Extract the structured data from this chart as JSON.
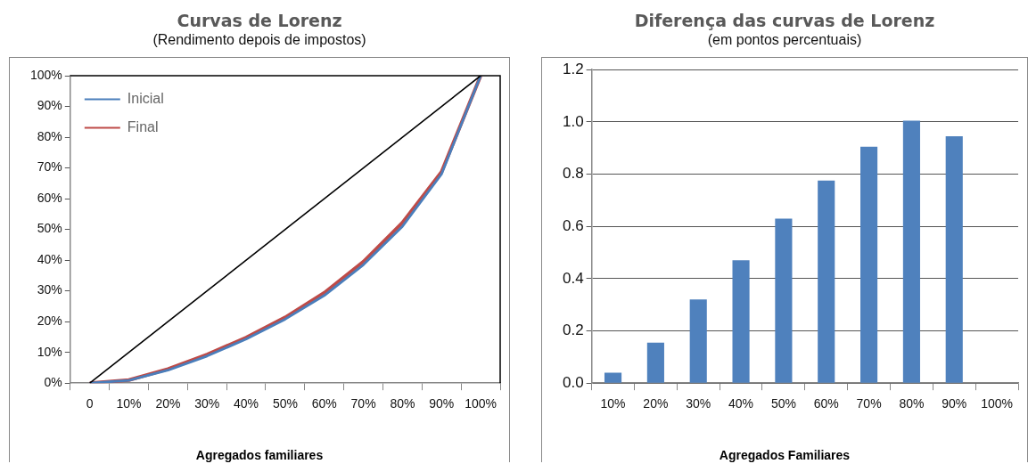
{
  "chart_data": [
    {
      "type": "line",
      "title": "Curvas de Lorenz",
      "subtitle": "(Rendimento depois de impostos)",
      "xlabel": "Agregados familiares",
      "categories": [
        "0",
        "10%",
        "20%",
        "30%",
        "40%",
        "50%",
        "60%",
        "70%",
        "80%",
        "90%",
        "100%"
      ],
      "series": [
        {
          "color": "#000000",
          "values": [
            0,
            10,
            20,
            30,
            40,
            50,
            60,
            70,
            80,
            90,
            100
          ]
        },
        {
          "name": "Inicial",
          "color": "#4a7ebb",
          "values": [
            0,
            0.9,
            4.2,
            8.8,
            14.3,
            20.8,
            28.5,
            38.5,
            51,
            68,
            100
          ]
        },
        {
          "name": "Final",
          "color": "#be4b48",
          "values": [
            0,
            1,
            4.6,
            9.3,
            14.8,
            21.4,
            29.4,
            39.5,
            52.2,
            68.7,
            100
          ]
        }
      ],
      "ylim": [
        0,
        100
      ],
      "yticks": [
        {
          "value": 0,
          "label": "0%"
        },
        {
          "value": 10,
          "label": "10%"
        },
        {
          "value": 20,
          "label": "20%"
        },
        {
          "value": 30,
          "label": "30%"
        },
        {
          "value": 40,
          "label": "40%"
        },
        {
          "value": 50,
          "label": "50%"
        },
        {
          "value": 60,
          "label": "60%"
        },
        {
          "value": 70,
          "label": "70%"
        },
        {
          "value": 80,
          "label": "80%"
        },
        {
          "value": 90,
          "label": "90%"
        },
        {
          "value": 100,
          "label": "100%"
        }
      ],
      "grid": false,
      "legend": "top left",
      "marker": "none"
    },
    {
      "type": "bar",
      "title": "Diferença das curvas de Lorenz",
      "subtitle": "(em pontos percentuais)",
      "xlabel": "Agregados Familiares",
      "categories": [
        "10%",
        "20%",
        "30%",
        "40%",
        "50%",
        "60%",
        "70%",
        "80%",
        "90%",
        "100%"
      ],
      "values": [
        0.04,
        0.155,
        0.32,
        0.47,
        0.63,
        0.775,
        0.905,
        1.005,
        0.945,
        null
      ],
      "color": "#4f81bd",
      "ylim": [
        0,
        1.2
      ],
      "yticks": [
        {
          "value": 0,
          "label": "0.0"
        },
        {
          "value": 0.2,
          "label": "0.2"
        },
        {
          "value": 0.4,
          "label": "0.4"
        },
        {
          "value": 0.6,
          "label": "0.6"
        },
        {
          "value": 0.8,
          "label": "0.8"
        },
        {
          "value": 1,
          "label": "1.0"
        },
        {
          "value": 1.2,
          "label": "1.2"
        }
      ],
      "grid": "y",
      "legend": false
    }
  ]
}
